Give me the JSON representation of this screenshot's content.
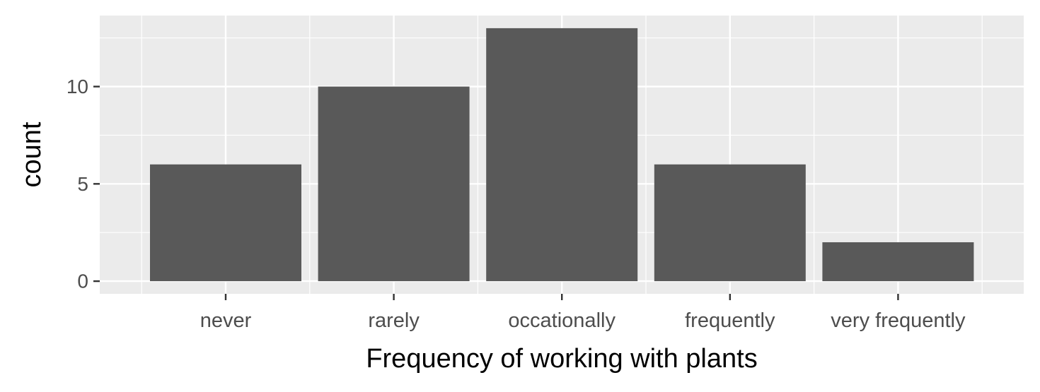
{
  "chart_data": {
    "type": "bar",
    "categories": [
      "never",
      "rarely",
      "occationally",
      "frequently",
      "very frequently"
    ],
    "values": [
      6,
      10,
      13,
      6,
      2
    ],
    "title": "",
    "xlabel": "Frequency of working with plants",
    "ylabel": "count",
    "ylim": [
      -0.65,
      13.65
    ],
    "yticks": [
      0,
      5,
      10
    ],
    "ytick_labels": [
      "0",
      "5",
      "10"
    ],
    "grid": true,
    "legend": "none"
  },
  "colors": {
    "panel_background": "#ebebeb",
    "grid_major": "#ffffff",
    "bar_fill": "#595959",
    "tick_label": "#4d4d4d",
    "axis_title": "#000000",
    "tick_mark": "#333333"
  }
}
